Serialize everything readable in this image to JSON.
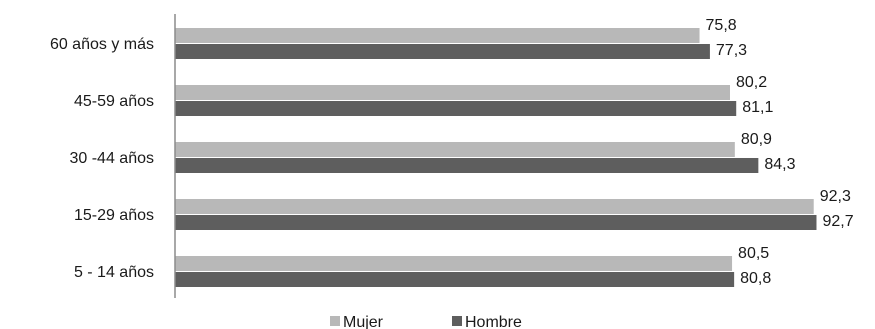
{
  "chart_data": {
    "type": "bar",
    "orientation": "horizontal",
    "title": "",
    "xlabel": "",
    "ylabel": "",
    "categories": [
      "60 años y más",
      "45-59 años",
      "30 -44 años",
      "15-29 años",
      "5 - 14 años"
    ],
    "series": [
      {
        "name": "Mujer",
        "values": [
          75.8,
          80.2,
          80.9,
          92.3,
          80.5
        ],
        "value_labels": [
          "75,8",
          "80,2",
          "80,9",
          "92,3",
          "80,5"
        ],
        "color": "#b8b8b8"
      },
      {
        "name": "Hombre",
        "values": [
          77.3,
          81.1,
          84.3,
          92.7,
          80.8
        ],
        "value_labels": [
          "77,3",
          "81,1",
          "84,3",
          "92,7",
          "80,8"
        ],
        "color": "#5e5e5e"
      }
    ],
    "xlim": [
      0,
      100
    ],
    "grid": false,
    "legend": "bottom-center"
  }
}
